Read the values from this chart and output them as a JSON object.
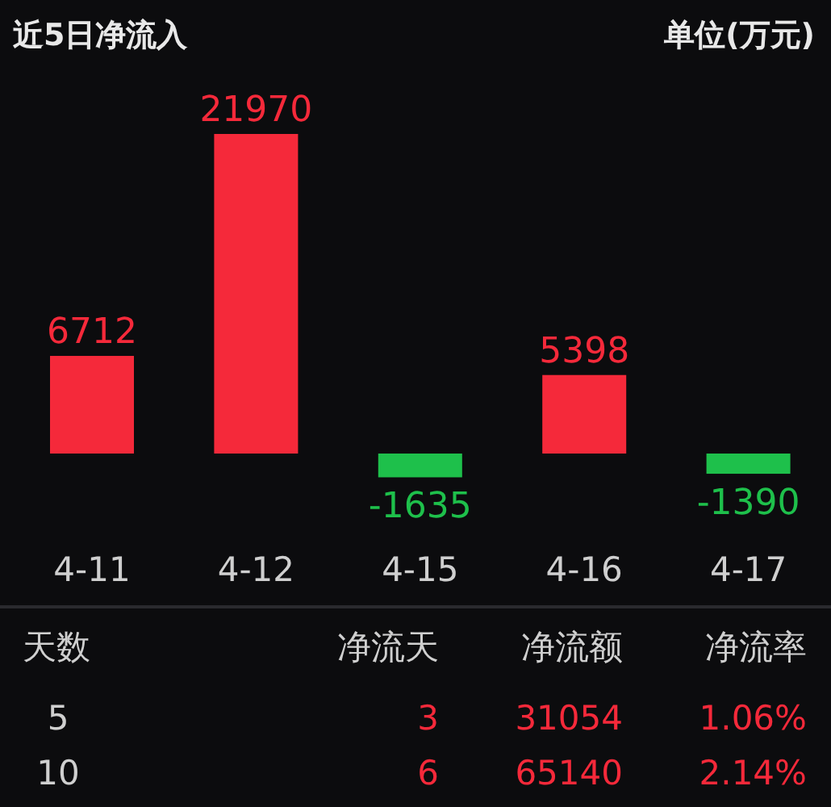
{
  "chart_data": [
    {
      "type": "bar",
      "title": "近5日净流入",
      "subtitle": "单位(万元)",
      "categories": [
        "4-11",
        "4-12",
        "4-15",
        "4-16",
        "4-17"
      ],
      "values": [
        6712,
        21970,
        -1635,
        5398,
        -1390
      ],
      "colors": [
        "#f5293a",
        "#f5293a",
        "#1ec04b",
        "#f5293a",
        "#1ec04b"
      ],
      "data_labels": true
    },
    {
      "type": "other",
      "annotations": [
        "天数",
        "净流天",
        "净流额",
        "净流率",
        "5",
        "3",
        "31054",
        "1.06%",
        "10",
        "6",
        "65140",
        "2.14%"
      ]
    }
  ]
}
